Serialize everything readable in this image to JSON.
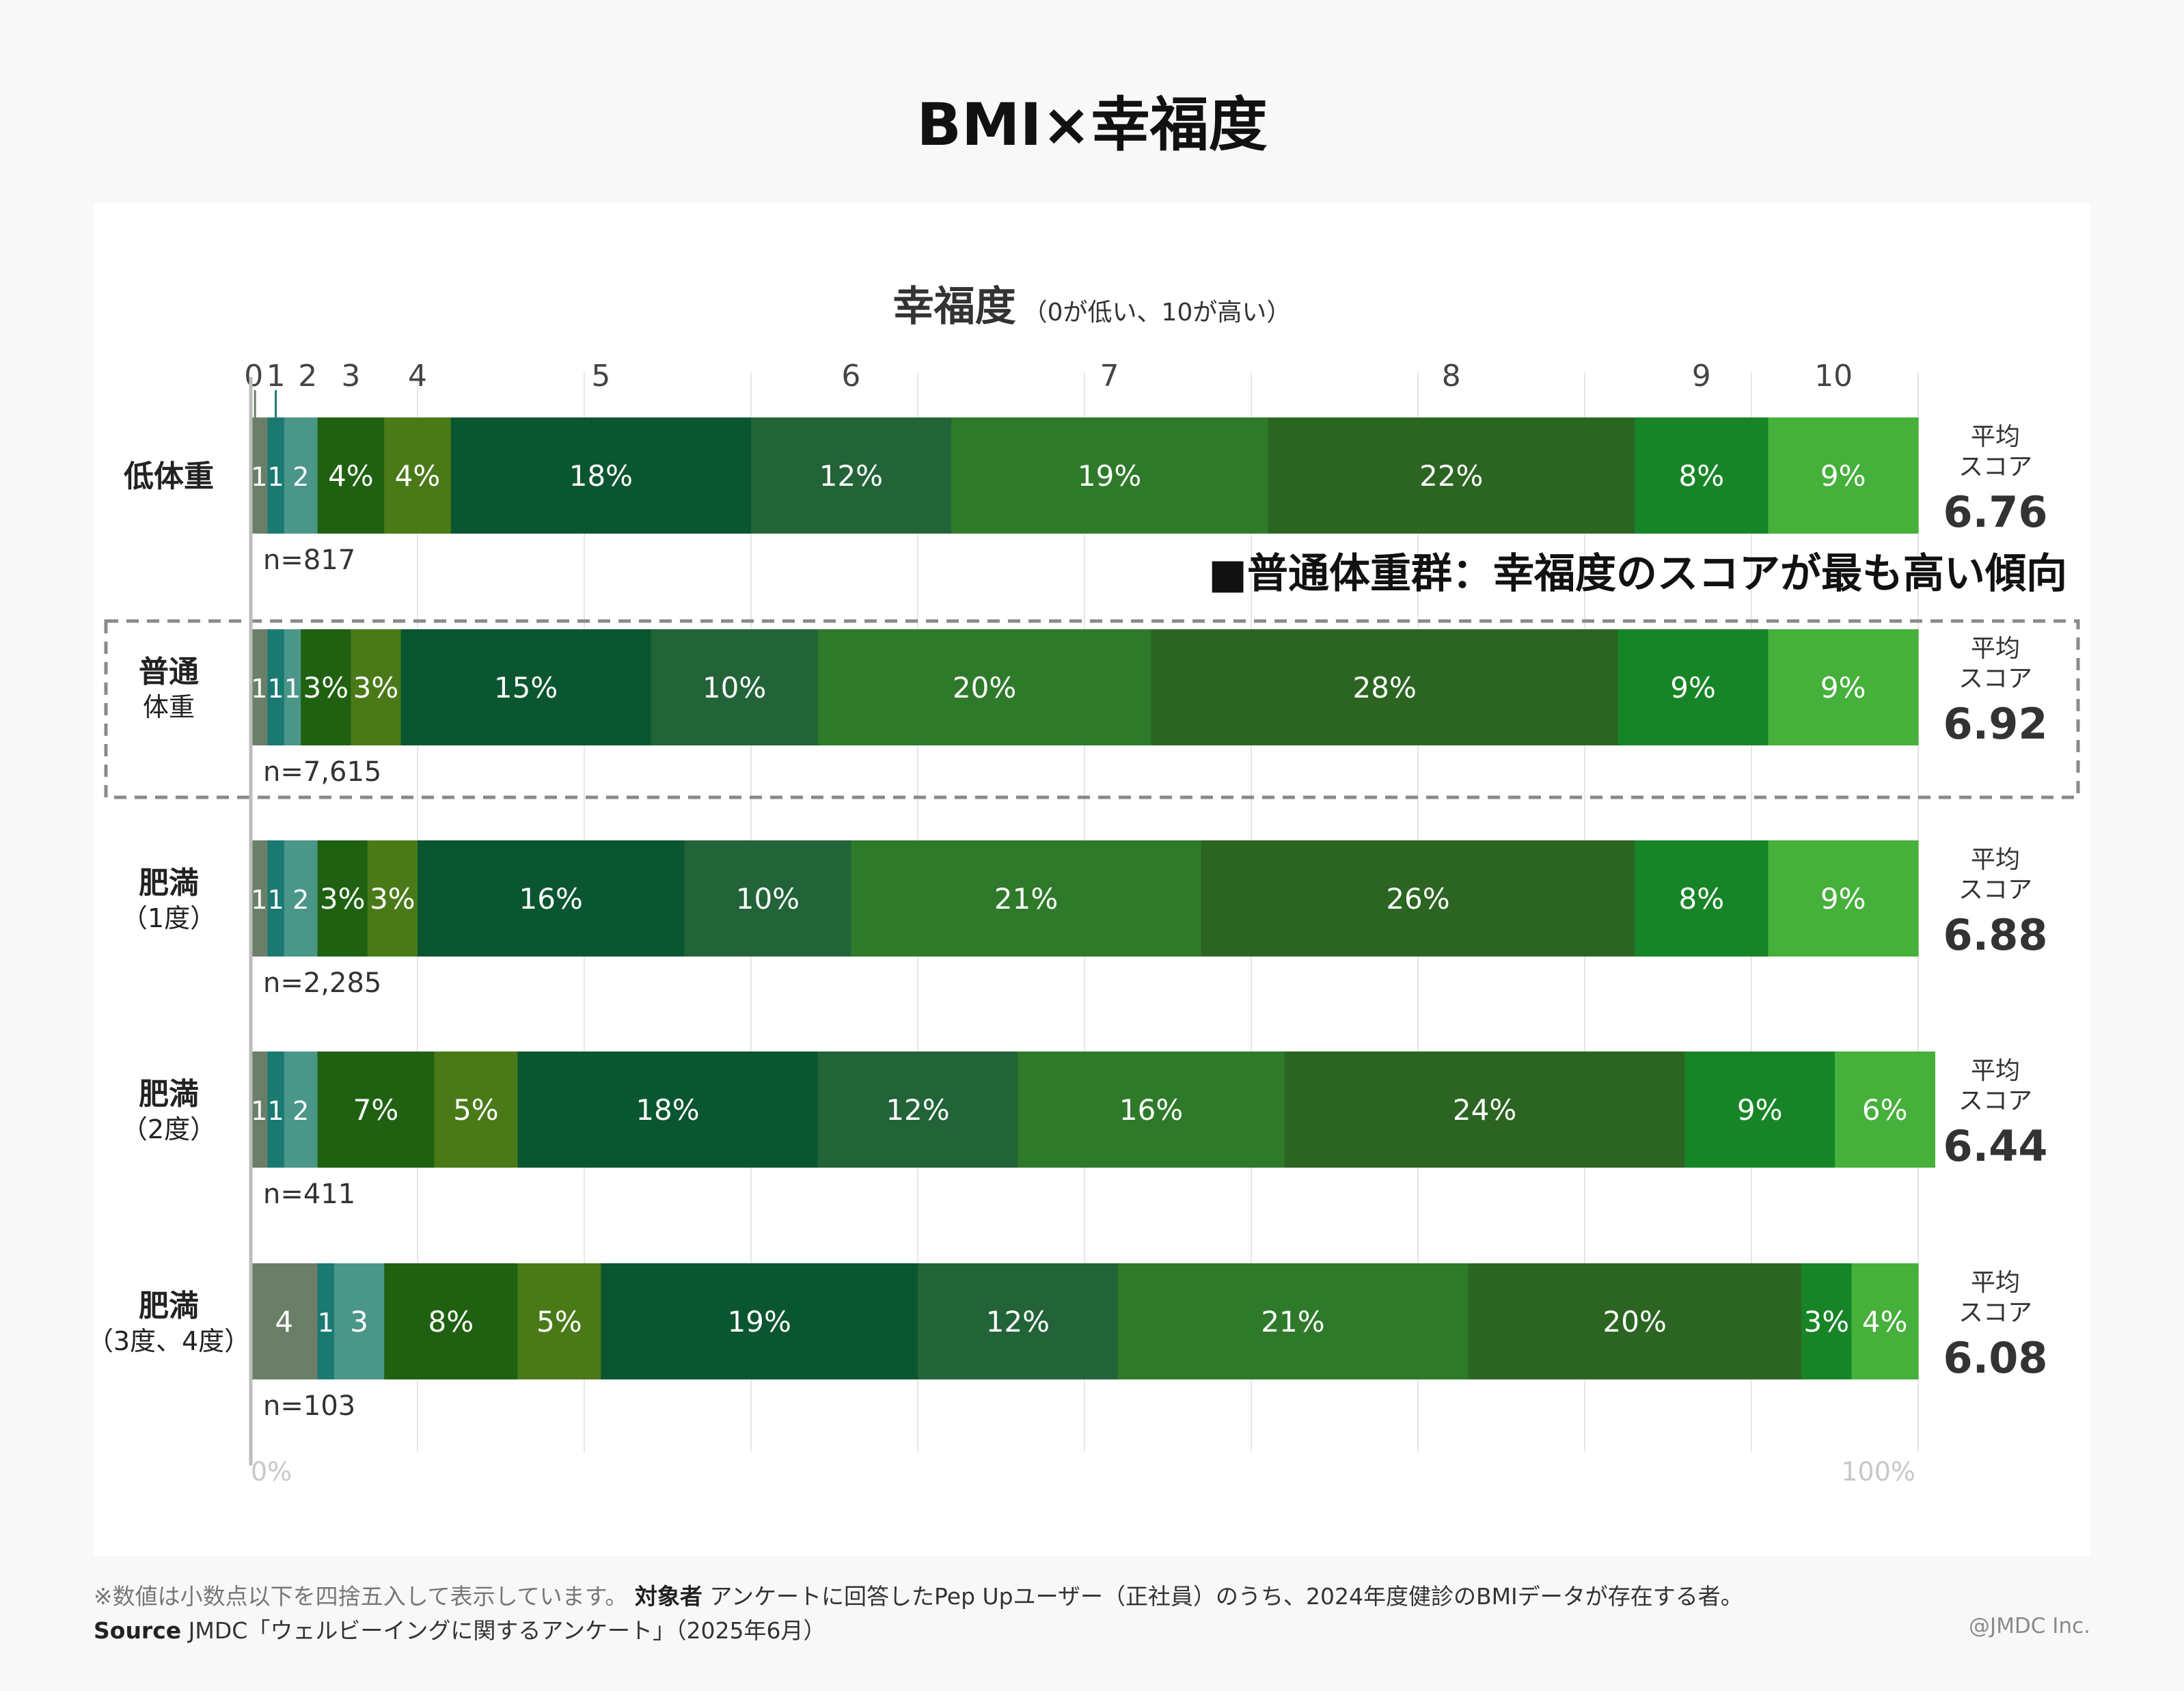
{
  "title": "BMI×幸福度",
  "chart_data": {
    "type": "bar",
    "stacked": "100%",
    "orientation": "horizontal",
    "axis_title": "幸福度",
    "axis_subtitle": "（0が低い、10が高い）",
    "score_levels": [
      "0",
      "1",
      "2",
      "3",
      "4",
      "5",
      "6",
      "7",
      "8",
      "9",
      "10"
    ],
    "level_colors": [
      "#6b7f68",
      "#1a7a72",
      "#4a9688",
      "#1f6110",
      "#4a7a18",
      "#0a5630",
      "#226338",
      "#2e7a2a",
      "#2b6521",
      "#178527",
      "#45b03a"
    ],
    "xlim": [
      0,
      100
    ],
    "x_ticks": [
      "0%",
      "100%"
    ],
    "score_label_prefix": "平均",
    "score_label_suffix": "スコア",
    "categories": [
      {
        "label": [
          "低体重"
        ],
        "values": [
          1,
          1,
          2,
          4,
          4,
          18,
          12,
          19,
          22,
          8,
          9
        ],
        "labels": [
          "1",
          "1",
          "2",
          "4%",
          "4%",
          "18%",
          "12%",
          "19%",
          "22%",
          "8%",
          "9%"
        ],
        "n": "n=817",
        "avg_score": "6.76",
        "highlight": false
      },
      {
        "label": [
          "普通",
          "体重"
        ],
        "values": [
          1,
          1,
          1,
          3,
          3,
          15,
          10,
          20,
          28,
          9,
          9
        ],
        "labels": [
          "1",
          "1",
          "1",
          "3%",
          "3%",
          "15%",
          "10%",
          "20%",
          "28%",
          "9%",
          "9%"
        ],
        "n": "n=7,615",
        "avg_score": "6.92",
        "highlight": true
      },
      {
        "label": [
          "肥満",
          "（1度）"
        ],
        "values": [
          1,
          1,
          2,
          3,
          3,
          16,
          10,
          21,
          26,
          8,
          9
        ],
        "labels": [
          "1",
          "1",
          "2",
          "3%",
          "3%",
          "16%",
          "10%",
          "21%",
          "26%",
          "8%",
          "9%"
        ],
        "n": "n=2,285",
        "avg_score": "6.88",
        "highlight": false
      },
      {
        "label": [
          "肥満",
          "（2度）"
        ],
        "values": [
          1,
          1,
          2,
          7,
          5,
          18,
          12,
          16,
          24,
          9,
          6
        ],
        "labels": [
          "1",
          "1",
          "2",
          "7%",
          "5%",
          "18%",
          "12%",
          "16%",
          "24%",
          "9%",
          "6%"
        ],
        "n": "n=411",
        "avg_score": "6.44",
        "highlight": false
      },
      {
        "label": [
          "肥満",
          "（3度、4度）"
        ],
        "values": [
          4,
          1,
          3,
          8,
          5,
          19,
          12,
          21,
          20,
          3,
          4
        ],
        "labels": [
          "4",
          "1",
          "3",
          "8%",
          "5%",
          "19%",
          "12%",
          "21%",
          "20%",
          "3%",
          "4%"
        ],
        "n": "n=103",
        "avg_score": "6.08",
        "highlight": false
      }
    ],
    "annotation": "■普通体重群：幸福度のスコアが最も高い傾向"
  },
  "footnote": {
    "note": "※数値は小数点以下を四捨五入して表示しています。",
    "target_label": "対象者",
    "target_text": "アンケートに回答したPep Upユーザー（正社員）のうち、2024年度健診のBMIデータが存在する者。"
  },
  "source": {
    "label": "Source",
    "text": "JMDC「ウェルビーイングに関するアンケート」（2025年6月）"
  },
  "copyright": "@JMDC Inc."
}
